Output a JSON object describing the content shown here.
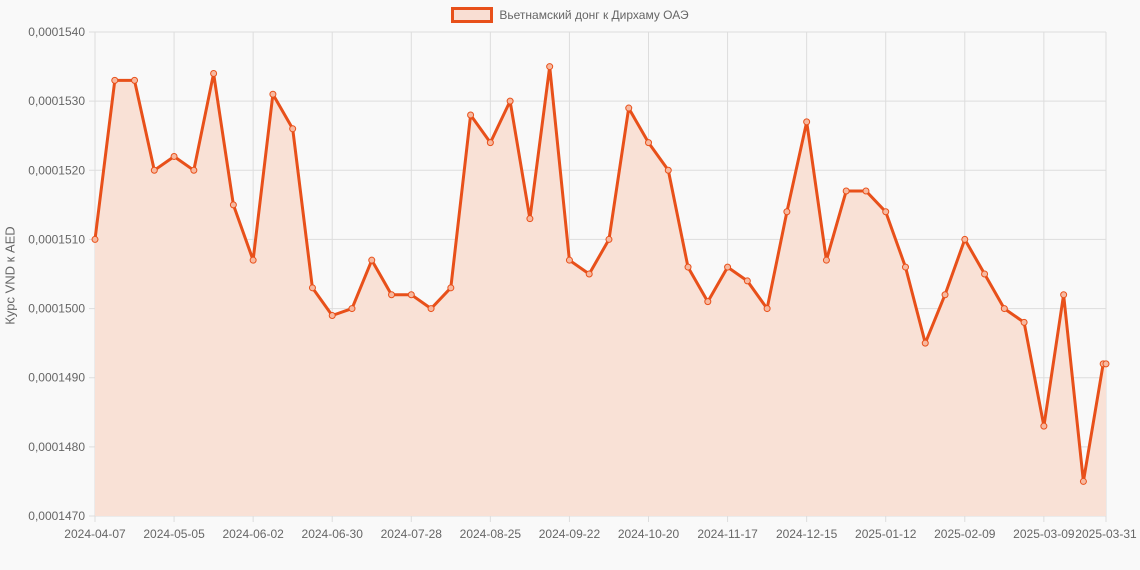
{
  "legend": {
    "label": "Вьетнамский донг к Дирхаму ОАЭ"
  },
  "axis": {
    "ylabel": "Курс VND к AED"
  },
  "colors": {
    "line": "#e8501a",
    "fill": "#f9e1d6",
    "grid": "#dddddd",
    "text": "#666666",
    "background": "#f9f9f9"
  },
  "chart_data": {
    "type": "area",
    "title": "",
    "xlabel": "",
    "ylabel": "Курс VND к AED",
    "ylim": [
      0.000147,
      0.000154
    ],
    "yticks": [
      "0,0001470",
      "0,0001480",
      "0,0001490",
      "0,0001500",
      "0,0001510",
      "0,0001520",
      "0,0001530",
      "0,0001540"
    ],
    "xticks": [
      "2024-04-07",
      "2024-05-05",
      "2024-06-02",
      "2024-06-30",
      "2024-07-28",
      "2024-08-25",
      "2024-09-22",
      "2024-10-20",
      "2024-11-17",
      "2024-12-15",
      "2025-01-12",
      "2025-02-09",
      "2025-03-09",
      "2025-03-31"
    ],
    "grid": true,
    "legend_position": "top",
    "series": [
      {
        "name": "Вьетнамский донг к Дирхаму ОАЭ",
        "x": [
          "2024-04-07",
          "2024-04-14",
          "2024-04-21",
          "2024-04-28",
          "2024-05-05",
          "2024-05-12",
          "2024-05-19",
          "2024-05-26",
          "2024-06-02",
          "2024-06-09",
          "2024-06-16",
          "2024-06-23",
          "2024-06-30",
          "2024-07-07",
          "2024-07-14",
          "2024-07-21",
          "2024-07-28",
          "2024-08-04",
          "2024-08-11",
          "2024-08-18",
          "2024-08-25",
          "2024-09-01",
          "2024-09-08",
          "2024-09-15",
          "2024-09-22",
          "2024-09-29",
          "2024-10-06",
          "2024-10-13",
          "2024-10-20",
          "2024-10-27",
          "2024-11-03",
          "2024-11-10",
          "2024-11-17",
          "2024-11-24",
          "2024-12-01",
          "2024-12-08",
          "2024-12-15",
          "2024-12-22",
          "2024-12-29",
          "2025-01-05",
          "2025-01-12",
          "2025-01-19",
          "2025-01-26",
          "2025-02-02",
          "2025-02-09",
          "2025-02-16",
          "2025-02-23",
          "2025-03-02",
          "2025-03-09",
          "2025-03-16",
          "2025-03-23",
          "2025-03-30",
          "2025-03-31"
        ],
        "values": [
          0.000151,
          0.0001533,
          0.0001533,
          0.000152,
          0.0001522,
          0.000152,
          0.0001534,
          0.0001515,
          0.0001507,
          0.0001531,
          0.0001526,
          0.0001503,
          0.0001499,
          0.00015,
          0.0001507,
          0.0001502,
          0.0001502,
          0.00015,
          0.0001503,
          0.0001528,
          0.0001524,
          0.000153,
          0.0001513,
          0.0001535,
          0.0001507,
          0.0001505,
          0.000151,
          0.0001529,
          0.0001524,
          0.000152,
          0.0001506,
          0.0001501,
          0.0001506,
          0.0001504,
          0.00015,
          0.0001514,
          0.0001527,
          0.0001507,
          0.0001517,
          0.0001517,
          0.0001514,
          0.0001506,
          0.0001495,
          0.0001502,
          0.000151,
          0.0001505,
          0.00015,
          0.0001498,
          0.0001483,
          0.0001502,
          0.0001475,
          0.0001492,
          0.0001492
        ]
      }
    ]
  }
}
